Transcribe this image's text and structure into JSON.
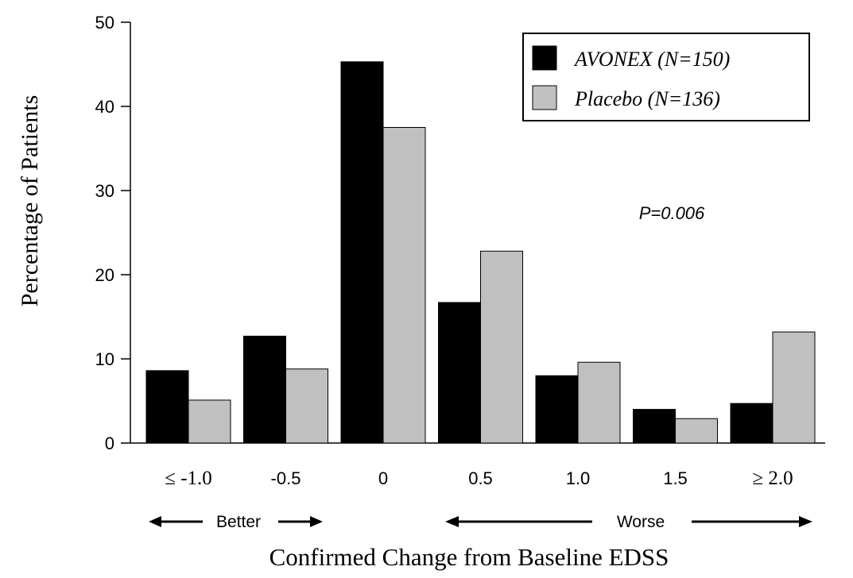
{
  "chart_data": {
    "type": "bar",
    "title": "",
    "xlabel": "Confirmed Change from Baseline EDSS",
    "ylabel": "Percentage of Patients",
    "ylim": [
      0,
      50
    ],
    "yticks": [
      0,
      10,
      20,
      30,
      40,
      50
    ],
    "categories": [
      "≤ -1.0",
      "-0.5",
      "0",
      "0.5",
      "1.0",
      "1.5",
      "≥ 2.0"
    ],
    "series": [
      {
        "name": "AVONEX (N=150)",
        "color": "#000000",
        "values": [
          8.6,
          12.7,
          45.3,
          16.7,
          8.0,
          4.0,
          4.7
        ]
      },
      {
        "name": "Placebo (N=136)",
        "color": "#c0c0c0",
        "values": [
          5.1,
          8.8,
          37.5,
          22.8,
          9.6,
          2.9,
          13.2
        ]
      }
    ],
    "legend_position": "top-right",
    "grid": false,
    "annotations": {
      "p_value": "P=0.006",
      "better": "Better",
      "worse": "Worse"
    }
  }
}
